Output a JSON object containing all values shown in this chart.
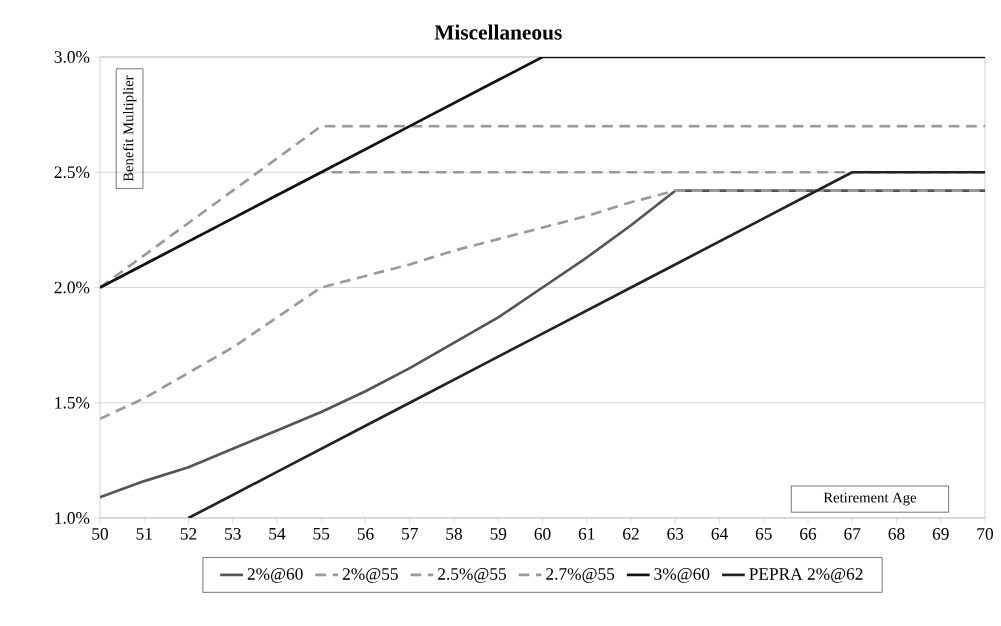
{
  "chart_data": {
    "type": "line",
    "title": "Miscellaneous",
    "xlabel": "Retirement Age",
    "ylabel": "Benefit Multiplier",
    "x": [
      50,
      51,
      52,
      53,
      54,
      55,
      56,
      57,
      58,
      59,
      60,
      61,
      62,
      63,
      64,
      65,
      66,
      67,
      68,
      69,
      70
    ],
    "xlim": [
      50,
      70
    ],
    "xticks": [
      50,
      51,
      52,
      53,
      54,
      55,
      56,
      57,
      58,
      59,
      60,
      61,
      62,
      63,
      64,
      65,
      66,
      67,
      68,
      69,
      70
    ],
    "ylim": [
      1.0,
      3.0
    ],
    "yticks": [
      {
        "value": 1.0,
        "label": "1.0%"
      },
      {
        "value": 1.5,
        "label": "1.5%"
      },
      {
        "value": 2.0,
        "label": "2.0%"
      },
      {
        "value": 2.5,
        "label": "2.5%"
      },
      {
        "value": 3.0,
        "label": "3.0%"
      }
    ],
    "grid": "y",
    "legend": "bottom",
    "series": [
      {
        "name": "2%@60",
        "color": "#555555",
        "line_style": "solid",
        "values": [
          1.09,
          1.16,
          1.22,
          1.3,
          1.38,
          1.46,
          1.55,
          1.65,
          1.76,
          1.87,
          2.0,
          2.13,
          2.27,
          2.42,
          2.42,
          2.42,
          2.42,
          2.42,
          2.42,
          2.42,
          2.42
        ]
      },
      {
        "name": "2%@55",
        "color": "#9a9a9a",
        "line_style": "dashed",
        "values": [
          1.43,
          1.52,
          1.63,
          1.74,
          1.87,
          2.0,
          2.05,
          2.1,
          2.16,
          2.21,
          2.26,
          2.31,
          2.37,
          2.42,
          2.42,
          2.42,
          2.42,
          2.42,
          2.42,
          2.42,
          2.42
        ]
      },
      {
        "name": "2.5%@55",
        "color": "#9a9a9a",
        "line_style": "dashed",
        "values": [
          2.0,
          2.1,
          2.2,
          2.3,
          2.4,
          2.5,
          2.5,
          2.5,
          2.5,
          2.5,
          2.5,
          2.5,
          2.5,
          2.5,
          2.5,
          2.5,
          2.5,
          2.5,
          2.5,
          2.5,
          2.5
        ]
      },
      {
        "name": "2.7%@55",
        "color": "#9a9a9a",
        "line_style": "dashed",
        "values": [
          2.0,
          2.14,
          2.28,
          2.42,
          2.56,
          2.7,
          2.7,
          2.7,
          2.7,
          2.7,
          2.7,
          2.7,
          2.7,
          2.7,
          2.7,
          2.7,
          2.7,
          2.7,
          2.7,
          2.7,
          2.7
        ]
      },
      {
        "name": "3%@60",
        "color": "#111111",
        "line_style": "solid",
        "values": [
          2.0,
          2.1,
          2.2,
          2.3,
          2.4,
          2.5,
          2.6,
          2.7,
          2.8,
          2.9,
          3.0,
          3.0,
          3.0,
          3.0,
          3.0,
          3.0,
          3.0,
          3.0,
          3.0,
          3.0,
          3.0
        ]
      },
      {
        "name": "PEPRA 2%@62",
        "color": "#222222",
        "line_style": "solid",
        "values": [
          null,
          null,
          1.0,
          1.1,
          1.2,
          1.3,
          1.4,
          1.5,
          1.6,
          1.7,
          1.8,
          1.9,
          2.0,
          2.1,
          2.2,
          2.3,
          2.4,
          2.5,
          2.5,
          2.5,
          2.5
        ]
      }
    ]
  }
}
